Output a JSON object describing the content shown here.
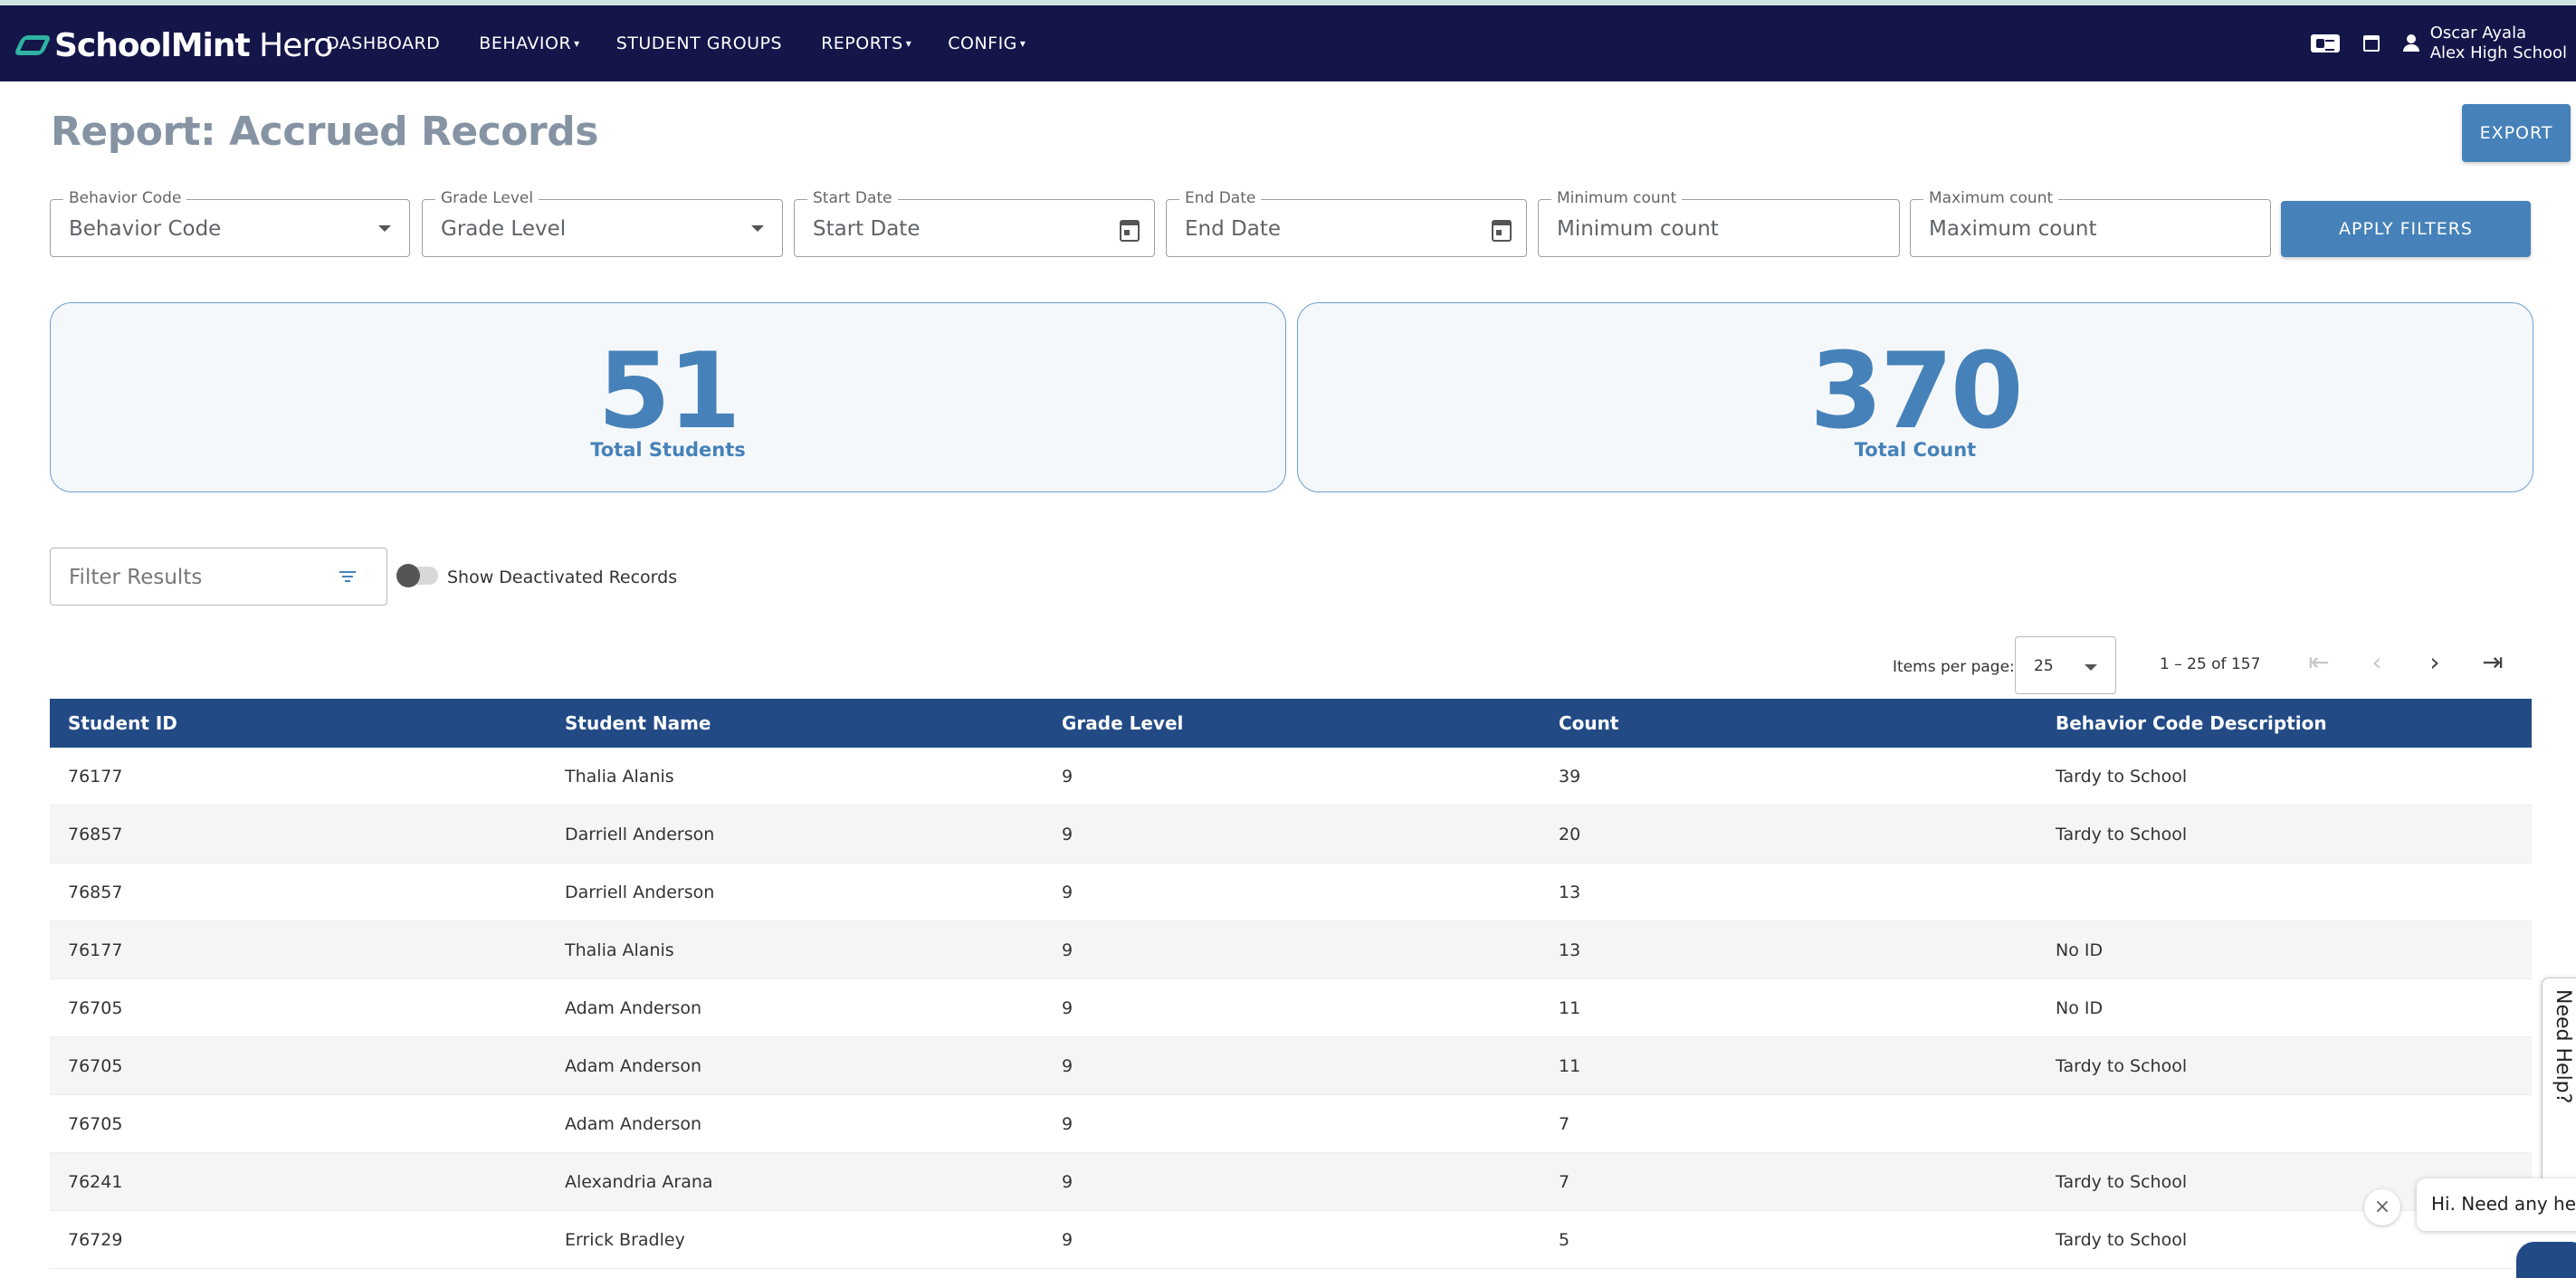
{
  "app": {
    "brand_bold": "SchoolMint",
    "brand_light": " Hero"
  },
  "nav": {
    "items": [
      {
        "label": "DASHBOARD",
        "caret": ""
      },
      {
        "label": "BEHAVIOR",
        "caret": "▾"
      },
      {
        "label": "STUDENT GROUPS",
        "caret": ""
      },
      {
        "label": "REPORTS",
        "caret": "▾"
      },
      {
        "label": "CONFIG",
        "caret": "▾"
      }
    ],
    "user_name": "Oscar Ayala",
    "school": "Alex High School"
  },
  "page": {
    "title": "Report: Accrued Records",
    "export_label": "EXPORT"
  },
  "filters": {
    "behavior_code": {
      "label": "Behavior Code",
      "value": "Behavior Code"
    },
    "grade_level": {
      "label": "Grade Level",
      "value": "Grade Level"
    },
    "start_date": {
      "label": "Start Date",
      "value": "Start Date"
    },
    "end_date": {
      "label": "End Date",
      "value": "End Date"
    },
    "min_count": {
      "label": "Minimum count",
      "placeholder": "Minimum count"
    },
    "max_count": {
      "label": "Maximum count",
      "placeholder": "Maximum count"
    },
    "apply_label": "APPLY FILTERS"
  },
  "stats": {
    "total_students": {
      "value": "51",
      "label": "Total Students"
    },
    "total_count": {
      "value": "370",
      "label": "Total Count"
    }
  },
  "results": {
    "filter_placeholder": "Filter Results",
    "show_deactivated_label": "Show Deactivated Records",
    "show_deactivated": false
  },
  "paginator": {
    "items_per_page_label": "Items per page:",
    "items_per_page": "25",
    "range": "1 – 25 of 157"
  },
  "table": {
    "headers": [
      "Student ID",
      "Student Name",
      "Grade Level",
      "Count",
      "Behavior Code Description"
    ],
    "rows": [
      [
        "76177",
        "Thalia Alanis",
        "9",
        "39",
        "Tardy to School"
      ],
      [
        "76857",
        "Darriell Anderson",
        "9",
        "20",
        "Tardy to School"
      ],
      [
        "76857",
        "Darriell Anderson",
        "9",
        "13",
        ""
      ],
      [
        "76177",
        "Thalia Alanis",
        "9",
        "13",
        "No ID"
      ],
      [
        "76705",
        "Adam Anderson",
        "9",
        "11",
        "No ID"
      ],
      [
        "76705",
        "Adam Anderson",
        "9",
        "11",
        "Tardy to School"
      ],
      [
        "76705",
        "Adam Anderson",
        "9",
        "7",
        ""
      ],
      [
        "76241",
        "Alexandria Arana",
        "9",
        "7",
        "Tardy to School"
      ],
      [
        "76729",
        "Errick Bradley",
        "9",
        "5",
        "Tardy to School"
      ]
    ]
  },
  "help": {
    "tab_label": "Need Help?",
    "chat_prompt": "Hi. Need any help?",
    "close_glyph": "×"
  },
  "colors": {
    "navbar": "#14164a",
    "accent": "#4682b9",
    "table_header": "#224b86",
    "logo_teal": "#2fb3a3"
  }
}
